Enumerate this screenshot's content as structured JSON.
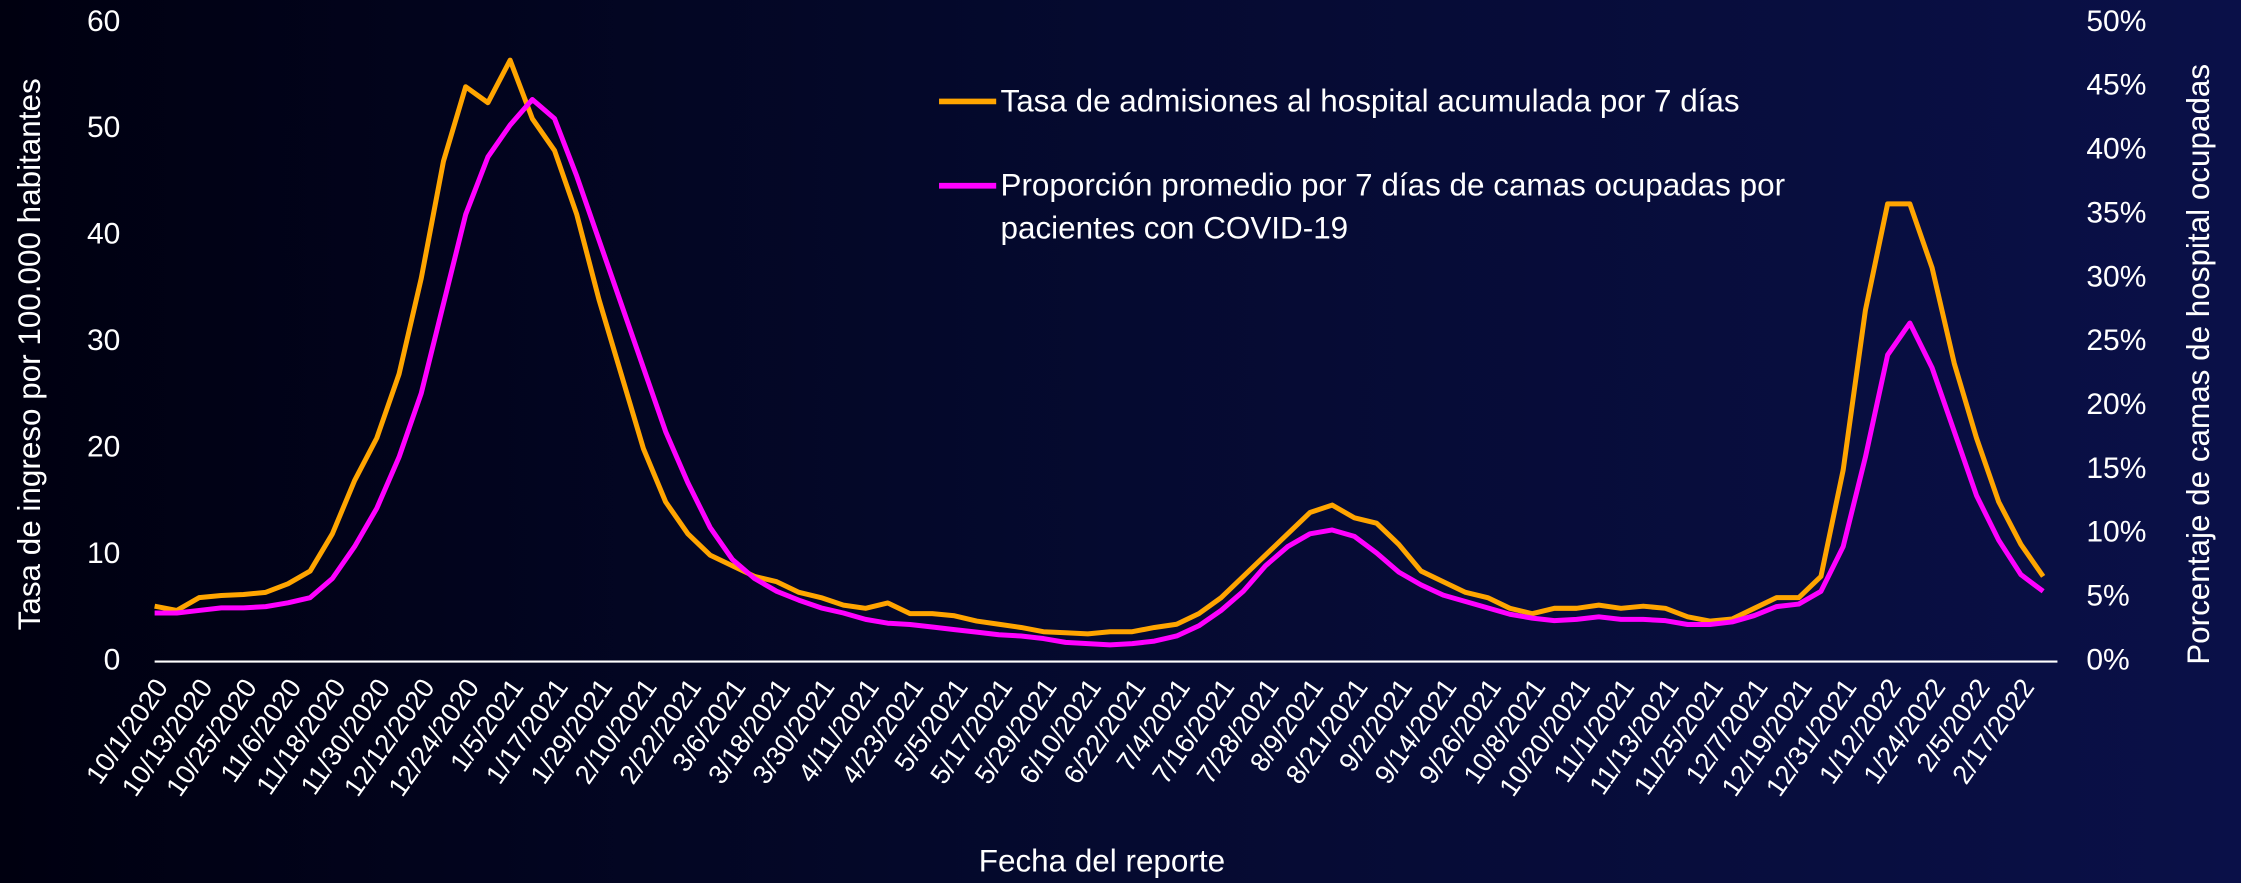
{
  "chart_data": {
    "type": "line",
    "xlabel": "Fecha del reporte",
    "ylabel": "Tasa de ingreso por 100.000 habitantes",
    "y2label": "Porcentaje de camas de hospital ocupadas",
    "categories": [
      "10/1/2020",
      null,
      "10/13/2020",
      null,
      "10/25/2020",
      null,
      "11/6/2020",
      null,
      "11/18/2020",
      null,
      "11/30/2020",
      null,
      "12/12/2020",
      null,
      "12/24/2020",
      null,
      "1/5/2021",
      null,
      "1/17/2021",
      null,
      "1/29/2021",
      null,
      "2/10/2021",
      null,
      "2/22/2021",
      null,
      "3/6/2021",
      null,
      "3/18/2021",
      null,
      "3/30/2021",
      null,
      "4/11/2021",
      null,
      "4/23/2021",
      null,
      "5/5/2021",
      null,
      "5/17/2021",
      null,
      "5/29/2021",
      null,
      "6/10/2021",
      null,
      "6/22/2021",
      null,
      "7/4/2021",
      null,
      "7/16/2021",
      null,
      "7/28/2021",
      null,
      "8/9/2021",
      null,
      "8/21/2021",
      null,
      "9/2/2021",
      null,
      "9/14/2021",
      null,
      "9/26/2021",
      null,
      "10/8/2021",
      null,
      "10/20/2021",
      null,
      "11/1/2021",
      null,
      "11/13/2021",
      null,
      "11/25/2021",
      null,
      "12/7/2021",
      null,
      "12/19/2021",
      null,
      "12/31/2021",
      null,
      "1/12/2022",
      null,
      "1/24/2022",
      null,
      "2/5/2022",
      null,
      "2/17/2022",
      null
    ],
    "series": [
      {
        "name": "Tasa de admisiones al hospital acumulada por 7 días",
        "color": "#ffa500",
        "values": [
          5.2,
          4.8,
          6.0,
          6.2,
          6.3,
          6.5,
          7.3,
          8.5,
          12,
          17,
          21,
          27,
          36,
          47,
          54,
          52.5,
          56.5,
          51,
          48,
          42,
          34,
          27,
          20,
          15,
          12,
          10,
          9,
          8,
          7.5,
          6.5,
          6,
          5.3,
          5,
          5.5,
          4.5,
          4.5,
          4.3,
          3.8,
          3.5,
          3.2,
          2.8,
          2.7,
          2.6,
          2.8,
          2.8,
          3.2,
          3.5,
          4.5,
          6,
          8,
          10,
          12,
          14,
          14.7,
          13.5,
          13,
          11,
          8.5,
          7.5,
          6.5,
          6,
          5,
          4.5,
          5,
          5,
          5.3,
          5,
          5.2,
          5,
          4.2,
          3.8,
          4,
          5,
          6,
          6,
          8,
          18,
          33,
          43,
          43,
          37,
          28,
          21,
          15,
          11,
          8
        ]
      },
      {
        "name": "Proporción promedio por 7 días de camas ocupadas por pacientes con COVID-19",
        "color": "#ff00ff",
        "axis": "y2",
        "values": [
          3.8,
          3.8,
          4,
          4.2,
          4.2,
          4.3,
          4.6,
          5,
          6.5,
          9,
          12,
          16,
          21,
          28,
          35,
          39.5,
          42,
          44,
          42.5,
          38,
          33,
          28,
          23,
          18,
          14,
          10.5,
          8,
          6.5,
          5.5,
          4.8,
          4.2,
          3.8,
          3.3,
          3,
          2.9,
          2.7,
          2.5,
          2.3,
          2.1,
          2,
          1.8,
          1.5,
          1.4,
          1.3,
          1.4,
          1.6,
          2,
          2.8,
          4,
          5.5,
          7.5,
          9,
          10,
          10.3,
          9.8,
          8.5,
          7,
          6,
          5.2,
          4.7,
          4.2,
          3.7,
          3.4,
          3.2,
          3.3,
          3.5,
          3.3,
          3.3,
          3.2,
          2.9,
          2.9,
          3.1,
          3.6,
          4.3,
          4.5,
          5.5,
          9,
          16,
          24,
          26.5,
          23,
          18,
          13,
          9.5,
          6.8,
          5.5
        ]
      }
    ],
    "ylim": [
      0,
      60
    ],
    "yticks": [
      0,
      10,
      20,
      30,
      40,
      50,
      60
    ],
    "y2lim": [
      0,
      50
    ],
    "y2ticks": [
      {
        "value": 0,
        "label": "0%"
      },
      {
        "value": 5,
        "label": "5%"
      },
      {
        "value": 10,
        "label": "10%"
      },
      {
        "value": 15,
        "label": "15%"
      },
      {
        "value": 20,
        "label": "20%"
      },
      {
        "value": 25,
        "label": "25%"
      },
      {
        "value": 30,
        "label": "30%"
      },
      {
        "value": 35,
        "label": "35%"
      },
      {
        "value": 40,
        "label": "40%"
      },
      {
        "value": 45,
        "label": "45%"
      },
      {
        "value": 50,
        "label": "50%"
      }
    ],
    "legend": "top-right"
  }
}
